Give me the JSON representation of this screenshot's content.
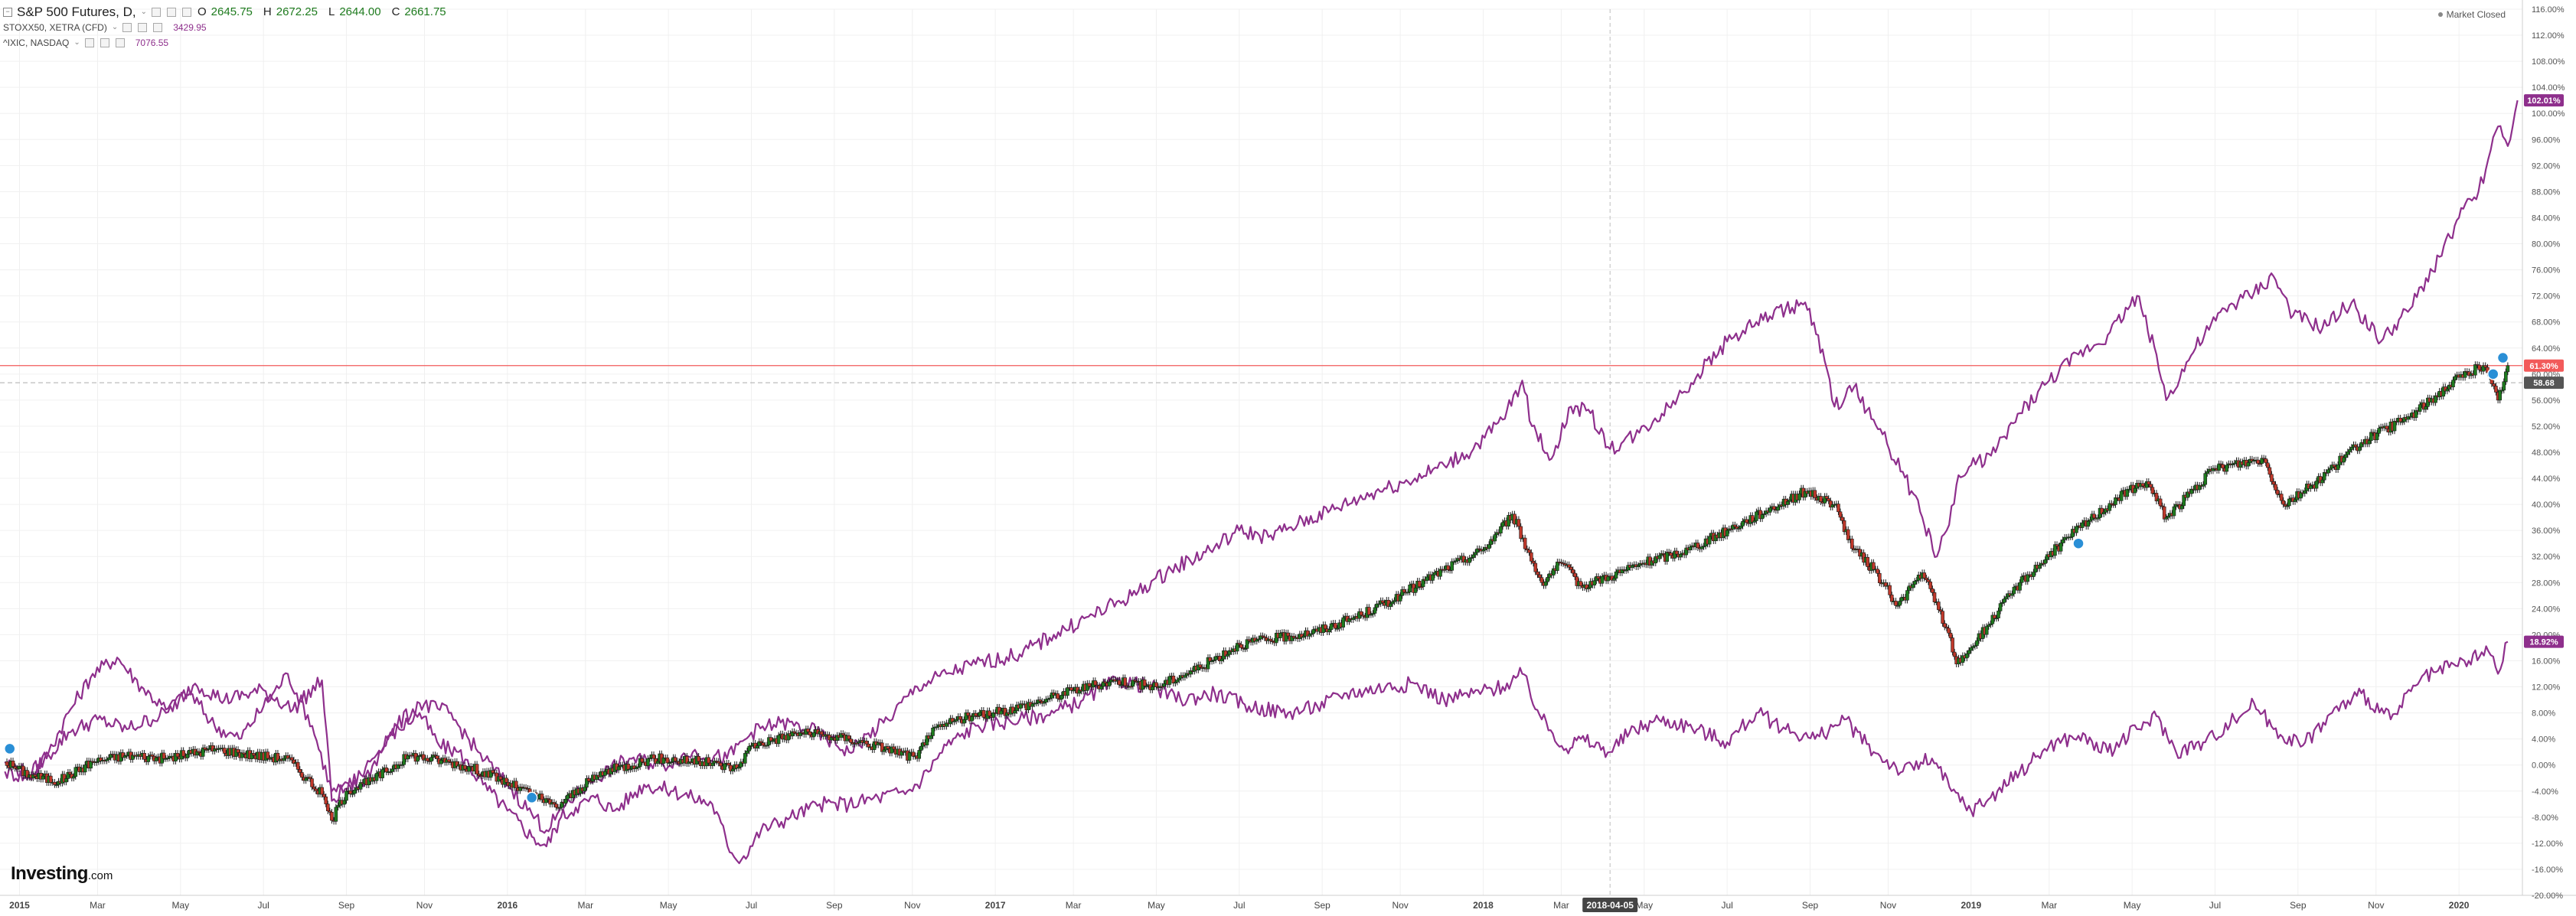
{
  "legend": {
    "main_symbol": "S&P 500 Futures, D,",
    "ohlc": [
      {
        "key": "O",
        "value": "2645.75"
      },
      {
        "key": "H",
        "value": "2672.25"
      },
      {
        "key": "L",
        "value": "2644.00"
      },
      {
        "key": "C",
        "value": "2661.75"
      }
    ],
    "overlays": [
      {
        "symbol": "STOXX50, XETRA (CFD)",
        "value": "3429.95"
      },
      {
        "symbol": "^IXIC, NASDAQ",
        "value": "7076.55"
      }
    ]
  },
  "market_status": "Market Closed",
  "logo": {
    "main": "Investing",
    "domain": ".com"
  },
  "crosshair_date_label": "2018-04-05",
  "colors": {
    "up_candle": "#1e7b1e",
    "down_candle": "#c0392b",
    "overlay_line": "#8e2f8c",
    "price_line": "#f25a5a",
    "background": "#ffffff",
    "grid": "#f0f0f0"
  },
  "chart_data": {
    "type": "line",
    "y_unit": "percent change",
    "ylim": [
      -20,
      116
    ],
    "y_ticks": [
      "116.00%",
      "112.00%",
      "108.00%",
      "104.00%",
      "100.00%",
      "96.00%",
      "92.00%",
      "88.00%",
      "84.00%",
      "80.00%",
      "76.00%",
      "72.00%",
      "68.00%",
      "64.00%",
      "60.00%",
      "56.00%",
      "52.00%",
      "48.00%",
      "44.00%",
      "40.00%",
      "36.00%",
      "32.00%",
      "28.00%",
      "24.00%",
      "20.00%",
      "16.00%",
      "12.00%",
      "8.00%",
      "4.00%",
      "0.00%",
      "-4.00%",
      "-8.00%",
      "-12.00%",
      "-16.00%",
      "-20.00%"
    ],
    "x_ticks": [
      {
        "label": "2015",
        "t": 2015.0,
        "bold": true
      },
      {
        "label": "Mar",
        "t": 2015.16
      },
      {
        "label": "May",
        "t": 2015.33
      },
      {
        "label": "Jul",
        "t": 2015.5
      },
      {
        "label": "Sep",
        "t": 2015.67
      },
      {
        "label": "Nov",
        "t": 2015.83
      },
      {
        "label": "2016",
        "t": 2016.0,
        "bold": true
      },
      {
        "label": "Mar",
        "t": 2016.16
      },
      {
        "label": "May",
        "t": 2016.33
      },
      {
        "label": "Jul",
        "t": 2016.5
      },
      {
        "label": "Sep",
        "t": 2016.67
      },
      {
        "label": "Nov",
        "t": 2016.83
      },
      {
        "label": "2017",
        "t": 2017.0,
        "bold": true
      },
      {
        "label": "Mar",
        "t": 2017.16
      },
      {
        "label": "May",
        "t": 2017.33
      },
      {
        "label": "Jul",
        "t": 2017.5
      },
      {
        "label": "Sep",
        "t": 2017.67
      },
      {
        "label": "Nov",
        "t": 2017.83
      },
      {
        "label": "2018",
        "t": 2018.0,
        "bold": true
      },
      {
        "label": "Mar",
        "t": 2018.16
      },
      {
        "label": "May",
        "t": 2018.33
      },
      {
        "label": "Jul",
        "t": 2018.5
      },
      {
        "label": "Sep",
        "t": 2018.67
      },
      {
        "label": "Nov",
        "t": 2018.83
      },
      {
        "label": "2019",
        "t": 2019.0,
        "bold": true
      },
      {
        "label": "Mar",
        "t": 2019.16
      },
      {
        "label": "May",
        "t": 2019.33
      },
      {
        "label": "Jul",
        "t": 2019.5
      },
      {
        "label": "Sep",
        "t": 2019.67
      },
      {
        "label": "Nov",
        "t": 2019.83
      },
      {
        "label": "2020",
        "t": 2020.0,
        "bold": true
      }
    ],
    "x_range": [
      2014.96,
      2020.13
    ],
    "crosshair_t": 2018.26,
    "series": [
      {
        "name": "S&P 500 Futures, D,",
        "style": "candles",
        "x": [
          2014.97,
          2015.02,
          2015.08,
          2015.15,
          2015.22,
          2015.3,
          2015.4,
          2015.48,
          2015.55,
          2015.62,
          2015.64,
          2015.67,
          2015.72,
          2015.8,
          2015.88,
          2015.95,
          2016.05,
          2016.1,
          2016.15,
          2016.2,
          2016.3,
          2016.4,
          2016.47,
          2016.5,
          2016.6,
          2016.7,
          2016.78,
          2016.84,
          2016.86,
          2016.92,
          2017.0,
          2017.08,
          2017.16,
          2017.25,
          2017.33,
          2017.42,
          2017.5,
          2017.58,
          2017.66,
          2017.75,
          2017.83,
          2017.92,
          2018.0,
          2018.06,
          2018.09,
          2018.12,
          2018.16,
          2018.2,
          2018.26,
          2018.33,
          2018.42,
          2018.5,
          2018.58,
          2018.66,
          2018.72,
          2018.76,
          2018.8,
          2018.85,
          2018.9,
          2018.95,
          2018.97,
          2019.0,
          2019.1,
          2019.2,
          2019.3,
          2019.36,
          2019.4,
          2019.5,
          2019.6,
          2019.64,
          2019.7,
          2019.8,
          2019.9,
          2020.0,
          2020.05,
          2020.08,
          2020.1
        ],
        "values": [
          0.5,
          -1.5,
          -2.5,
          0.5,
          1.5,
          1.0,
          2.5,
          1.5,
          1.0,
          -4.5,
          -8.5,
          -4.0,
          -2.5,
          1.5,
          0.5,
          -1.0,
          -4.5,
          -6.5,
          -3.5,
          -1.0,
          1.0,
          0.5,
          -0.5,
          3.0,
          5.0,
          4.0,
          2.5,
          1.0,
          4.5,
          7.0,
          8.0,
          9.5,
          11.5,
          13.0,
          12.0,
          15.0,
          18.5,
          19.5,
          20.5,
          23.0,
          26.0,
          30.0,
          33.0,
          38.5,
          33.0,
          28.0,
          31.0,
          27.5,
          29.0,
          31.0,
          33.0,
          36.0,
          39.0,
          42.0,
          40.0,
          33.0,
          30.0,
          24.5,
          29.5,
          21.0,
          15.5,
          18.0,
          28.0,
          35.0,
          41.0,
          43.5,
          38.0,
          45.5,
          47.0,
          40.0,
          43.0,
          49.5,
          53.5,
          59.5,
          61.3,
          56.0,
          61.3
        ]
      },
      {
        "name": "STOXX50, XETRA (CFD)",
        "style": "line",
        "x": [
          2014.97,
          2015.02,
          2015.06,
          2015.1,
          2015.15,
          2015.2,
          2015.25,
          2015.3,
          2015.35,
          2015.4,
          2015.45,
          2015.5,
          2015.55,
          2015.6,
          2015.64,
          2015.7,
          2015.76,
          2015.82,
          2015.86,
          2015.9,
          2015.95,
          2016.0,
          2016.05,
          2016.08,
          2016.11,
          2016.14,
          2016.18,
          2016.22,
          2016.28,
          2016.34,
          2016.38,
          2016.42,
          2016.46,
          2016.48,
          2016.52,
          2016.58,
          2016.64,
          2016.7,
          2016.76,
          2016.82,
          2016.84,
          2016.9,
          2016.96,
          2017.05,
          2017.12,
          2017.18,
          2017.25,
          2017.32,
          2017.38,
          2017.45,
          2017.52,
          2017.6,
          2017.66,
          2017.72,
          2017.8,
          2017.86,
          2017.92,
          2017.98,
          2018.04,
          2018.08,
          2018.12,
          2018.17,
          2018.2,
          2018.26,
          2018.3,
          2018.36,
          2018.42,
          2018.5,
          2018.56,
          2018.62,
          2018.68,
          2018.74,
          2018.8,
          2018.86,
          2018.92,
          2018.96,
          2019.0,
          2019.04,
          2019.1,
          2019.16,
          2019.22,
          2019.28,
          2019.34,
          2019.38,
          2019.42,
          2019.48,
          2019.54,
          2019.58,
          2019.62,
          2019.68,
          2019.74,
          2019.8,
          2019.86,
          2019.92,
          2019.98,
          2020.02,
          2020.06,
          2020.08,
          2020.1
        ],
        "values": [
          -1.0,
          -2.0,
          2.0,
          8.0,
          14.0,
          16.5,
          12.0,
          8.5,
          11.0,
          6.0,
          4.0,
          9.0,
          14.0,
          6.0,
          -4.0,
          -3.0,
          4.5,
          8.0,
          3.0,
          2.0,
          -3.0,
          -7.0,
          -11.0,
          -12.5,
          -8.0,
          -6.5,
          -5.0,
          -7.0,
          -3.0,
          -4.0,
          -5.0,
          -6.0,
          -13.5,
          -14.5,
          -10.0,
          -8.0,
          -6.0,
          -6.0,
          -5.0,
          -4.0,
          -3.0,
          3.0,
          6.0,
          7.0,
          8.0,
          10.0,
          13.0,
          12.0,
          10.0,
          11.0,
          9.0,
          8.0,
          9.0,
          11.0,
          12.0,
          12.5,
          10.0,
          11.0,
          12.0,
          14.0,
          7.0,
          2.5,
          4.0,
          2.0,
          5.0,
          7.0,
          6.0,
          3.5,
          8.0,
          5.5,
          4.0,
          7.0,
          2.0,
          -1.0,
          1.0,
          -4.0,
          -7.0,
          -5.0,
          -1.0,
          3.0,
          4.5,
          2.0,
          5.5,
          7.5,
          2.0,
          3.5,
          7.0,
          9.5,
          5.5,
          3.0,
          8.0,
          11.0,
          7.0,
          13.0,
          15.0,
          16.0,
          17.5,
          14.0,
          18.92
        ]
      },
      {
        "name": "^IXIC, NASDAQ",
        "style": "line",
        "x": [
          2014.97,
          2015.02,
          2015.06,
          2015.1,
          2015.16,
          2015.22,
          2015.3,
          2015.36,
          2015.42,
          2015.5,
          2015.56,
          2015.62,
          2015.64,
          2015.7,
          2015.76,
          2015.82,
          2015.88,
          2015.94,
          2016.0,
          2016.05,
          2016.08,
          2016.12,
          2016.18,
          2016.25,
          2016.32,
          2016.38,
          2016.45,
          2016.5,
          2016.56,
          2016.62,
          2016.7,
          2016.78,
          2016.84,
          2016.9,
          2016.96,
          2017.05,
          2017.12,
          2017.2,
          2017.28,
          2017.36,
          2017.44,
          2017.5,
          2017.56,
          2017.62,
          2017.7,
          2017.78,
          2017.86,
          2017.92,
          2017.98,
          2018.04,
          2018.08,
          2018.1,
          2018.14,
          2018.18,
          2018.22,
          2018.26,
          2018.32,
          2018.38,
          2018.44,
          2018.5,
          2018.56,
          2018.62,
          2018.66,
          2018.7,
          2018.72,
          2018.76,
          2018.8,
          2018.86,
          2018.9,
          2018.93,
          2018.95,
          2018.97,
          2019.0,
          2019.05,
          2019.1,
          2019.16,
          2019.22,
          2019.28,
          2019.34,
          2019.38,
          2019.4,
          2019.46,
          2019.52,
          2019.58,
          2019.62,
          2019.66,
          2019.72,
          2019.78,
          2019.84,
          2019.9,
          2019.96,
          2020.0,
          2020.04,
          2020.06,
          2020.08,
          2020.1,
          2020.12
        ],
        "values": [
          0.5,
          -1.5,
          1.5,
          5.0,
          7.0,
          5.5,
          8.0,
          12.5,
          10.0,
          11.5,
          8.5,
          13.0,
          -5.5,
          -1.5,
          5.0,
          9.5,
          8.0,
          2.0,
          -3.0,
          -7.5,
          -10.0,
          -6.0,
          -2.0,
          1.0,
          0.0,
          2.0,
          1.0,
          5.0,
          6.5,
          5.5,
          2.0,
          7.0,
          12.0,
          14.0,
          15.5,
          17.0,
          20.0,
          23.0,
          26.0,
          30.0,
          33.0,
          36.0,
          35.0,
          37.0,
          39.5,
          42.0,
          44.0,
          46.0,
          48.5,
          53.0,
          59.0,
          52.0,
          47.0,
          55.0,
          54.0,
          48.5,
          51.0,
          55.0,
          60.0,
          65.0,
          68.0,
          70.0,
          71.0,
          62.0,
          55.0,
          58.0,
          53.0,
          45.0,
          38.0,
          32.0,
          36.0,
          43.0,
          46.0,
          48.0,
          54.0,
          59.0,
          63.0,
          66.0,
          72.0,
          63.0,
          56.0,
          64.0,
          70.0,
          72.5,
          75.0,
          69.0,
          67.0,
          71.0,
          65.0,
          70.0,
          78.0,
          84.0,
          88.0,
          93.0,
          98.0,
          95.0,
          102.01
        ]
      }
    ],
    "price_labels": [
      {
        "label": "102.01%",
        "value": 102.01,
        "color": "#8e2f8c"
      },
      {
        "label": "61.30%",
        "value": 61.3,
        "color": "#f25a5a"
      },
      {
        "label": "58.68",
        "value": 58.68,
        "color": "#555555"
      },
      {
        "label": "18.92%",
        "value": 18.92,
        "color": "#8e2f8c"
      }
    ],
    "price_line_value": 61.3,
    "dashed_line_value": 58.68,
    "event_markers": [
      {
        "t": 2014.98,
        "value": 2.5
      },
      {
        "t": 2016.05,
        "value": -5.0
      },
      {
        "t": 2019.22,
        "value": 34.0
      },
      {
        "t": 2020.09,
        "value": 62.5
      },
      {
        "t": 2020.07,
        "value": 60.0
      }
    ]
  }
}
